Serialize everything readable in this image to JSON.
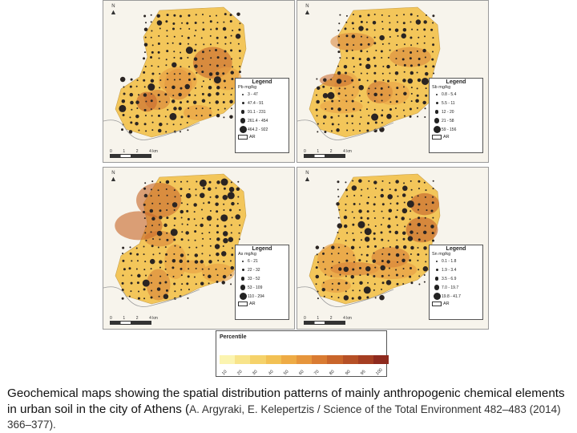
{
  "map_panels": [
    {
      "id": "pb",
      "legend_title": "Legend",
      "unit": "Pb mg/kg",
      "classes": [
        "3 - 47",
        "47.4 - 91",
        "91.1 - 231",
        "261.4 - 454",
        "464.2 - 922"
      ],
      "ar_label": "AR",
      "north": "N",
      "scale": [
        "0",
        "1",
        "2",
        "4 km"
      ],
      "hotspot_level": 0.75
    },
    {
      "id": "sb",
      "legend_title": "Legend",
      "unit": "Sb mg/kg",
      "classes": [
        "0.8 - 5.4",
        "5.5 - 11",
        "12 - 20",
        "21 - 58",
        "59 - 156"
      ],
      "ar_label": "AR",
      "north": "N",
      "scale": [
        "0",
        "1",
        "2",
        "4 km"
      ],
      "hotspot_level": 0.55
    },
    {
      "id": "as",
      "legend_title": "Legend",
      "unit": "As mg/kg",
      "classes": [
        "6 - 21",
        "22 - 32",
        "33 - 52",
        "53 - 109",
        "110 - 294"
      ],
      "ar_label": "AR",
      "north": "N",
      "scale": [
        "0",
        "1",
        "2",
        "4 km"
      ],
      "hotspot_level": 0.7
    },
    {
      "id": "sn",
      "legend_title": "Legend",
      "unit": "Sn mg/kg",
      "classes": [
        "0.1 - 1.8",
        "1.9 - 3.4",
        "3.5 - 6.9",
        "7.0 - 19.7",
        "19.8 - 41.7"
      ],
      "ar_label": "AR",
      "north": "N",
      "scale": [
        "0",
        "1",
        "2",
        "4 km"
      ],
      "hotspot_level": 0.85
    }
  ],
  "percentile": {
    "title": "Percentile",
    "labels": [
      "10",
      "20",
      "30",
      "40",
      "50",
      "60",
      "70",
      "80",
      "90",
      "95",
      "100"
    ],
    "colors": [
      "#fbf4b0",
      "#f8e48a",
      "#f5d26a",
      "#f2c154",
      "#eeab45",
      "#e6953c",
      "#d97b32",
      "#c9652b",
      "#b65026",
      "#a53e22",
      "#8e2a1e"
    ]
  },
  "caption": {
    "main": "Geochemical maps showing the spatial distribution patterns of mainly anthropogenic chemical elements in urban soil in the city of Athens (",
    "citation": "A. Argyraki, E. Kelepertzis / Science of the Total Environment 482–483 (2014) 366–377",
    "end": ")."
  }
}
